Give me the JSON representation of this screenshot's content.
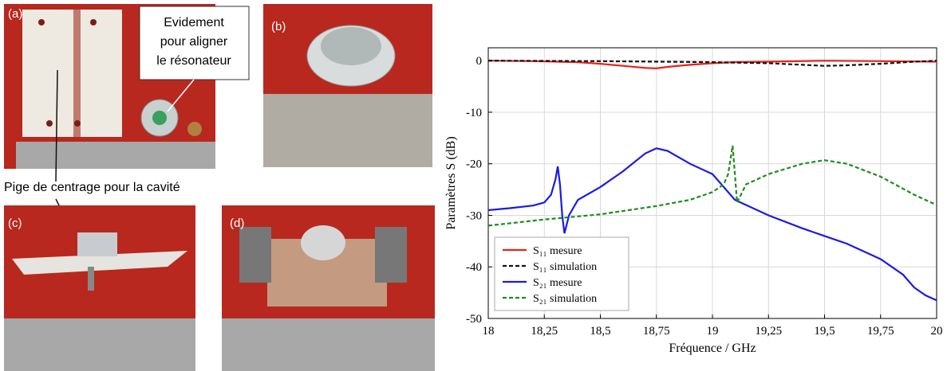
{
  "figure": {
    "photos": [
      {
        "label": "(a)"
      },
      {
        "label": "(b)"
      },
      {
        "label": "(c)"
      },
      {
        "label": "(d)"
      }
    ],
    "callout": [
      "Evidement",
      "pour aligner",
      "le résonateur"
    ],
    "annotation": "Pige de centrage pour la cavité"
  },
  "chart_data": {
    "type": "line",
    "xlabel": "Fréquence / GHz",
    "ylabel": "Paramètres S (dB)",
    "xlim": [
      18,
      20
    ],
    "ylim": [
      -50,
      2.5
    ],
    "xticks": [
      18,
      {
        "value": 18.25,
        "label": "18,25"
      },
      {
        "value": 18.5,
        "label": "18,5"
      },
      {
        "value": 18.75,
        "label": "18,75"
      },
      19,
      {
        "value": 19.25,
        "label": "19,25"
      },
      {
        "value": 19.5,
        "label": "19,5"
      },
      {
        "value": 19.75,
        "label": "19,75"
      },
      20
    ],
    "yticks": [
      -50,
      -40,
      -30,
      -20,
      -10,
      0
    ],
    "grid": true,
    "legend": "lower left",
    "series": [
      {
        "name": "S₁₁ mesure",
        "color": "#e8201c",
        "dash": false,
        "x": [
          18,
          18.2,
          18.4,
          18.5,
          18.6,
          18.7,
          18.75,
          18.8,
          18.9,
          19,
          19.1,
          19.25,
          19.5,
          19.75,
          20
        ],
        "values": [
          0,
          -0.1,
          -0.3,
          -0.6,
          -1.0,
          -1.4,
          -1.5,
          -1.2,
          -0.8,
          -0.5,
          -0.3,
          -0.2,
          0,
          -0.1,
          -0.2
        ]
      },
      {
        "name": "S₁₁ simulation",
        "color": "#111111",
        "dash": true,
        "x": [
          18,
          18.5,
          19,
          19.25,
          19.4,
          19.5,
          19.6,
          19.75,
          19.9,
          20
        ],
        "values": [
          0,
          -0.1,
          -0.3,
          -0.5,
          -0.8,
          -1.0,
          -0.9,
          -0.6,
          -0.2,
          0
        ]
      },
      {
        "name": "S₂₁ mesure",
        "color": "#1a1ae6",
        "dash": false,
        "x": [
          18,
          18.1,
          18.2,
          18.25,
          18.28,
          18.3,
          18.31,
          18.32,
          18.33,
          18.34,
          18.36,
          18.4,
          18.5,
          18.6,
          18.7,
          18.75,
          18.8,
          18.9,
          19,
          19.1,
          19.25,
          19.4,
          19.5,
          19.6,
          19.75,
          19.85,
          19.9,
          19.95,
          20
        ],
        "values": [
          -29,
          -28.6,
          -28.1,
          -27.5,
          -26,
          -23,
          -20.5,
          -24,
          -30,
          -33.5,
          -30,
          -27,
          -24.5,
          -21.5,
          -18,
          -17,
          -17.5,
          -20,
          -22,
          -27,
          -30,
          -32.5,
          -34,
          -35.5,
          -38.5,
          -41.5,
          -44,
          -45.5,
          -46.5
        ]
      },
      {
        "name": "S₂₁ simulation",
        "color": "#1e8c1e",
        "dash": true,
        "x": [
          18,
          18.25,
          18.5,
          18.75,
          18.9,
          19,
          19.05,
          19.07,
          19.09,
          19.1,
          19.11,
          19.15,
          19.25,
          19.4,
          19.5,
          19.6,
          19.75,
          19.9,
          20
        ],
        "values": [
          -32,
          -30.8,
          -29.8,
          -28.2,
          -27,
          -25.5,
          -24,
          -22,
          -16.5,
          -22,
          -27.5,
          -24,
          -22,
          -20,
          -19.3,
          -20,
          -22.5,
          -26,
          -28
        ]
      }
    ]
  }
}
